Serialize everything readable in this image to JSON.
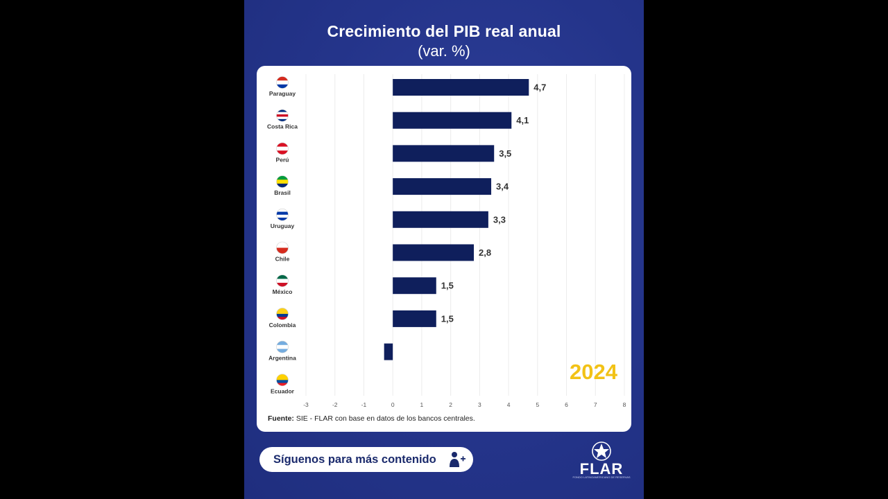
{
  "header": {
    "title": "Crecimiento del PIB real anual",
    "subtitle": "(var. %)"
  },
  "chart_data": {
    "type": "bar",
    "orientation": "horizontal",
    "categories": [
      "Paraguay",
      "Costa Rica",
      "Perú",
      "Brasil",
      "Uruguay",
      "Chile",
      "México",
      "Colombia",
      "Argentina",
      "Ecuador"
    ],
    "values": [
      4.7,
      4.1,
      3.5,
      3.4,
      3.3,
      2.8,
      1.5,
      1.5,
      -0.3,
      null
    ],
    "data_labels": [
      "4,7",
      "4,1",
      "3,5",
      "3,4",
      "3,3",
      "2,8",
      "1,5",
      "1,5",
      "",
      ""
    ],
    "xlim": [
      -3,
      8
    ],
    "xticks": [
      "-3",
      "-2",
      "-1",
      "0",
      "1",
      "2",
      "3",
      "4",
      "5",
      "6",
      "7",
      "8"
    ],
    "grid": true,
    "bar_color": "#0f1f5c",
    "annotation": "2024"
  },
  "footer": {
    "source_label": "Fuente:",
    "source_text": " SIE - FLAR con base en datos de los bancos centrales."
  },
  "cta": {
    "label": "Síguenos para más contenido",
    "icon": "add-user-icon"
  },
  "logo": {
    "text": "FLAR",
    "subtext": "FONDO LATINOAMERICANO DE RESERVAS"
  },
  "colors": {
    "panel": "#24348a",
    "accent": "#f2c216",
    "bar": "#0f1f5c"
  }
}
